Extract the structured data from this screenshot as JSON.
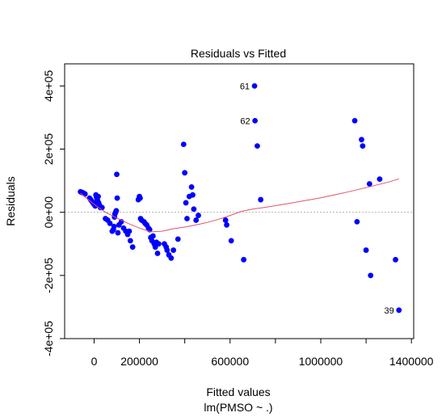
{
  "chart_data": {
    "type": "scatter",
    "title": "Residuals vs Fitted",
    "xlabel": "Fitted values",
    "xlabel_sub": "lm(PMSO ~ .)",
    "ylabel": "Residuals",
    "xlim": [
      -130000,
      1410000
    ],
    "ylim": [
      -400000,
      470000
    ],
    "x_ticks": [
      0,
      200000,
      400000,
      600000,
      800000,
      1000000,
      1200000,
      1400000
    ],
    "x_tick_labels": [
      {
        "value": 0,
        "label": "0"
      },
      {
        "value": 200000,
        "label": "200000"
      },
      {
        "value": 600000,
        "label": "600000"
      },
      {
        "value": 1000000,
        "label": "1000000"
      },
      {
        "value": 1400000,
        "label": "1400000"
      }
    ],
    "y_ticks": [
      -400000,
      -200000,
      0,
      200000,
      400000
    ],
    "y_tick_labels": [
      "-4e+05",
      "-2e+05",
      "0e+00",
      "2e+05",
      "4e+05"
    ],
    "zero_line": true,
    "colors": {
      "points": "#0000ff",
      "smoother": "#df536b",
      "zero_line": "#b3b3b3"
    },
    "points": [
      [
        -60000,
        65000
      ],
      [
        -55000,
        63000
      ],
      [
        -50000,
        62000
      ],
      [
        -45000,
        60000
      ],
      [
        -40000,
        58000
      ],
      [
        -20000,
        45000
      ],
      [
        -15000,
        40000
      ],
      [
        -10000,
        35000
      ],
      [
        -5000,
        30000
      ],
      [
        0,
        25000
      ],
      [
        5000,
        20000
      ],
      [
        8000,
        55000
      ],
      [
        10000,
        50000
      ],
      [
        12000,
        45000
      ],
      [
        14000,
        40000
      ],
      [
        16000,
        35000
      ],
      [
        18000,
        50000
      ],
      [
        20000,
        30000
      ],
      [
        22000,
        25000
      ],
      [
        25000,
        20000
      ],
      [
        28000,
        15000
      ],
      [
        35000,
        15000
      ],
      [
        50000,
        -20000
      ],
      [
        60000,
        -25000
      ],
      [
        70000,
        -35000
      ],
      [
        80000,
        -60000
      ],
      [
        85000,
        -55000
      ],
      [
        88000,
        -45000
      ],
      [
        90000,
        -15000
      ],
      [
        92000,
        -5000
      ],
      [
        95000,
        0
      ],
      [
        98000,
        5000
      ],
      [
        100000,
        120000
      ],
      [
        102000,
        45000
      ],
      [
        105000,
        -65000
      ],
      [
        110000,
        -40000
      ],
      [
        120000,
        -30000
      ],
      [
        130000,
        -50000
      ],
      [
        140000,
        -60000
      ],
      [
        148000,
        -70000
      ],
      [
        155000,
        -60000
      ],
      [
        160000,
        -90000
      ],
      [
        170000,
        -110000
      ],
      [
        195000,
        40000
      ],
      [
        200000,
        50000
      ],
      [
        203000,
        45000
      ],
      [
        205000,
        -20000
      ],
      [
        210000,
        -25000
      ],
      [
        220000,
        -30000
      ],
      [
        225000,
        -35000
      ],
      [
        232000,
        -40000
      ],
      [
        240000,
        -50000
      ],
      [
        245000,
        -55000
      ],
      [
        250000,
        -80000
      ],
      [
        255000,
        -90000
      ],
      [
        260000,
        -75000
      ],
      [
        265000,
        -100000
      ],
      [
        270000,
        -110000
      ],
      [
        275000,
        -95000
      ],
      [
        280000,
        -130000
      ],
      [
        285000,
        -100000
      ],
      [
        310000,
        -100000
      ],
      [
        318000,
        -110000
      ],
      [
        322000,
        -120000
      ],
      [
        330000,
        -135000
      ],
      [
        340000,
        -145000
      ],
      [
        350000,
        -120000
      ],
      [
        370000,
        -85000
      ],
      [
        395000,
        215000
      ],
      [
        400000,
        125000
      ],
      [
        405000,
        30000
      ],
      [
        410000,
        -20000
      ],
      [
        420000,
        50000
      ],
      [
        430000,
        80000
      ],
      [
        435000,
        55000
      ],
      [
        440000,
        10000
      ],
      [
        450000,
        -25000
      ],
      [
        460000,
        -10000
      ],
      [
        580000,
        -25000
      ],
      [
        585000,
        -40000
      ],
      [
        605000,
        -90000
      ],
      [
        660000,
        -150000
      ],
      [
        708000,
        400000
      ],
      [
        710000,
        290000
      ],
      [
        720000,
        210000
      ],
      [
        735000,
        40000
      ],
      [
        1150000,
        290000
      ],
      [
        1160000,
        -30000
      ],
      [
        1180000,
        230000
      ],
      [
        1185000,
        210000
      ],
      [
        1200000,
        -120000
      ],
      [
        1215000,
        90000
      ],
      [
        1220000,
        -200000
      ],
      [
        1260000,
        105000
      ],
      [
        1330000,
        -150000
      ],
      [
        1345000,
        -310000
      ]
    ],
    "point_labels": [
      {
        "text": "61",
        "x": 708000,
        "y": 400000
      },
      {
        "text": "62",
        "x": 710000,
        "y": 290000
      },
      {
        "text": "39",
        "x": 1345000,
        "y": -310000
      }
    ],
    "smoother": [
      [
        -60000,
        60000
      ],
      [
        0,
        25000
      ],
      [
        50000,
        0
      ],
      [
        100000,
        -18000
      ],
      [
        150000,
        -35000
      ],
      [
        200000,
        -50000
      ],
      [
        250000,
        -62000
      ],
      [
        300000,
        -60000
      ],
      [
        350000,
        -52000
      ],
      [
        400000,
        -47000
      ],
      [
        450000,
        -40000
      ],
      [
        500000,
        -32000
      ],
      [
        550000,
        -22000
      ],
      [
        600000,
        -10000
      ],
      [
        650000,
        3000
      ],
      [
        700000,
        10000
      ],
      [
        750000,
        15000
      ],
      [
        800000,
        21000
      ],
      [
        900000,
        33000
      ],
      [
        1000000,
        46000
      ],
      [
        1100000,
        61000
      ],
      [
        1200000,
        78000
      ],
      [
        1300000,
        96000
      ],
      [
        1345000,
        106000
      ]
    ]
  }
}
